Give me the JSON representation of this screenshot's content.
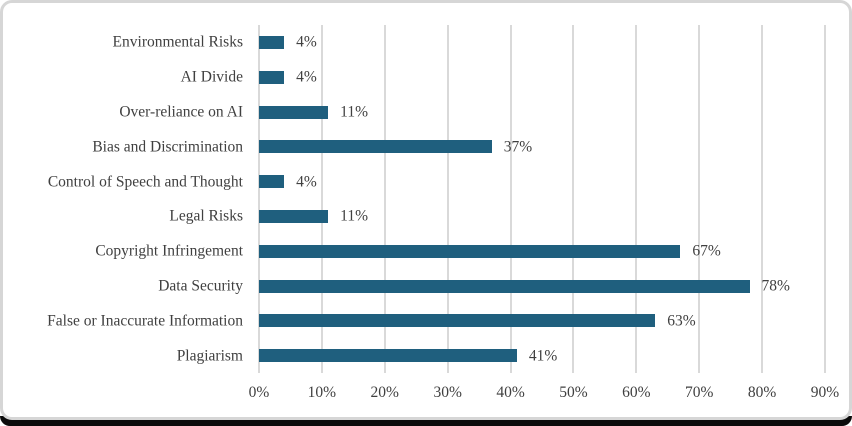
{
  "chart_data": {
    "type": "bar",
    "orientation": "horizontal",
    "title": "",
    "xlabel": "",
    "ylabel": "",
    "categories": [
      "Environmental Risks",
      "AI Divide",
      "Over-reliance on AI",
      "Bias and Discrimination",
      "Control of Speech and Thought",
      "Legal Risks",
      "Copyright Infringement",
      "Data Security",
      "False or Inaccurate Information",
      "Plagiarism"
    ],
    "values": [
      4,
      4,
      11,
      37,
      4,
      11,
      67,
      78,
      63,
      41
    ],
    "value_labels": [
      "4%",
      "4%",
      "11%",
      "37%",
      "4%",
      "11%",
      "67%",
      "78%",
      "63%",
      "41%"
    ],
    "xlim": [
      0,
      90
    ],
    "x_ticks": [
      0,
      10,
      20,
      30,
      40,
      50,
      60,
      70,
      80,
      90
    ],
    "x_tick_labels": [
      "0%",
      "10%",
      "20%",
      "30%",
      "40%",
      "50%",
      "60%",
      "70%",
      "80%",
      "90%"
    ],
    "grid": "vertical-only",
    "legend": "none",
    "colors": {
      "bar": "#1F5F7E",
      "gridline": "#D9D9D9",
      "text": "#404040",
      "card_border": "#D6D6D6",
      "background": "#FFFFFF"
    }
  }
}
